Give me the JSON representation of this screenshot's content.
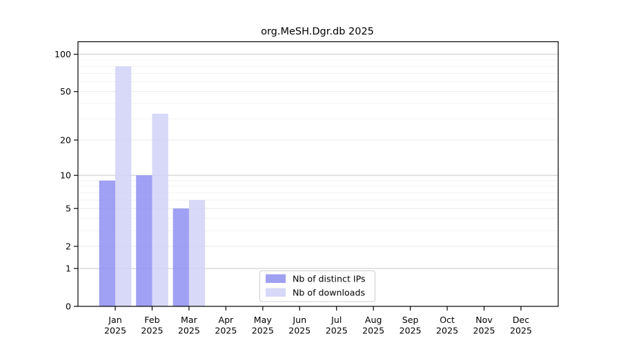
{
  "chart_data": {
    "type": "bar",
    "title": "org.MeSH.Dgr.db 2025",
    "categories": [
      "Jan",
      "Feb",
      "Mar",
      "Apr",
      "May",
      "Jun",
      "Jul",
      "Aug",
      "Sep",
      "Oct",
      "Nov",
      "Dec"
    ],
    "category_year": "2025",
    "series": [
      {
        "name": "Nb of distinct IPs",
        "color": "#8f8ff2",
        "rendered_color": "#a0a0f0",
        "values": [
          9,
          10,
          5,
          0,
          0,
          0,
          0,
          0,
          0,
          0,
          0,
          0
        ]
      },
      {
        "name": "Nb of downloads",
        "color": "#d1d1f7",
        "rendered_color": "#d8d8f8",
        "values": [
          80,
          33,
          6,
          0,
          0,
          0,
          0,
          0,
          0,
          0,
          0,
          0
        ]
      }
    ],
    "y_scale": "log1p",
    "y_max": 126,
    "y_ticks": [
      0,
      1,
      2,
      5,
      10,
      20,
      50,
      100
    ],
    "grid_major_values": [
      1,
      10,
      100
    ],
    "grid_medium_values": [
      2,
      5,
      20,
      50
    ],
    "grid_minor_values": [
      3,
      4,
      6,
      7,
      8,
      9,
      30,
      40,
      60,
      70,
      80,
      90
    ],
    "legend": {
      "entries": [
        "Nb of distinct IPs",
        "Nb of downloads"
      ],
      "position": "bottom-center-inside"
    },
    "colors": {
      "background": "#ffffff",
      "axis": "#000000",
      "grid_major": "#c8c8c8",
      "grid_medium": "#e8e8e8",
      "grid_minor": "#f2f2f2",
      "legend_border": "#cccccc",
      "legend_background": "#ffffff",
      "text": "#000000"
    },
    "xlabel": "",
    "ylabel": "",
    "grid": "horizontal"
  }
}
